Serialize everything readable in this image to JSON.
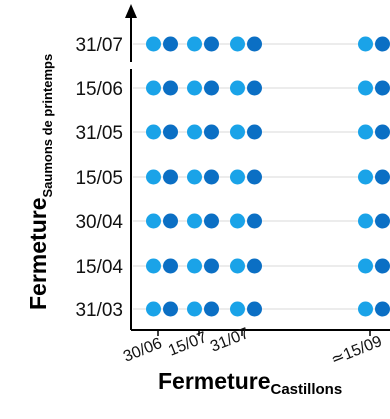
{
  "chart_data": {
    "type": "scatter",
    "title": "",
    "xlabel": "Fermeture",
    "xlabel_sub": "Castillons",
    "ylabel": "Fermeture",
    "ylabel_sub": "Saumons de printemps",
    "x_ticks": [
      "30/06",
      "15/07",
      "31/07",
      "≃15/09"
    ],
    "y_ticks": [
      "31/03",
      "15/04",
      "30/04",
      "15/05",
      "31/05",
      "15/06",
      "31/07"
    ],
    "y_axis_break": "between 15/06 and 31/07",
    "grid": "horizontal",
    "legend": "none",
    "colors": {
      "light_marker": "#1aa3e8",
      "dark_marker": "#0b6fc4",
      "gridline": "#d9d9d9",
      "axis": "#000000"
    },
    "marker_pairs": [
      {
        "x": "30/06",
        "markers": [
          "light",
          "dark"
        ]
      },
      {
        "x": "15/07",
        "markers": [
          "light",
          "dark"
        ]
      },
      {
        "x": "31/07",
        "markers": [
          "light",
          "dark"
        ]
      },
      {
        "x": "≃15/09",
        "markers": [
          "light",
          "dark"
        ]
      }
    ]
  }
}
